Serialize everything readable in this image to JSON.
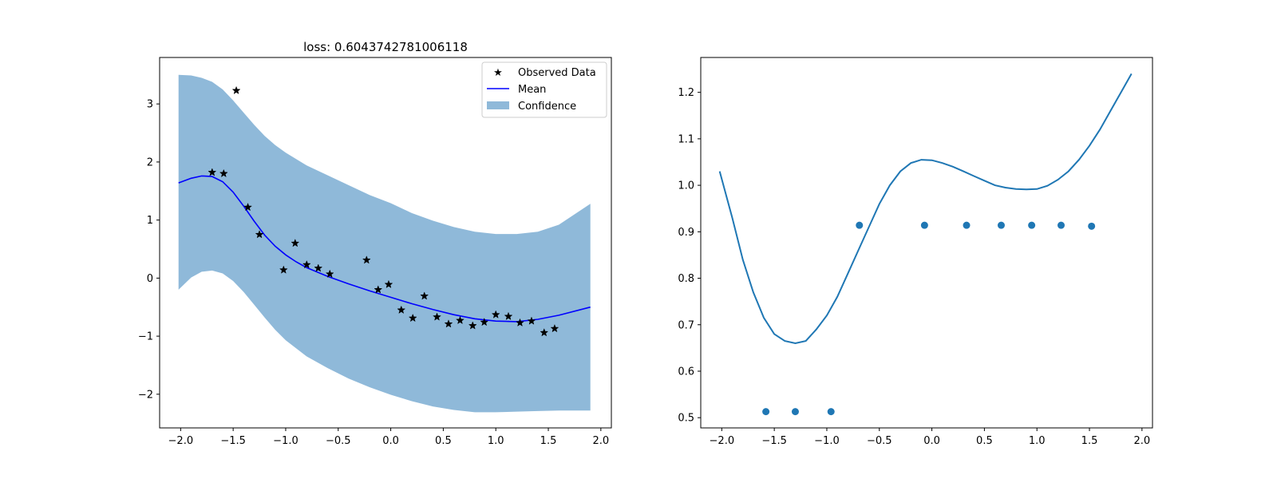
{
  "chart_data": [
    {
      "type": "line",
      "title": "loss: 0.6043742781006118",
      "xlabel": "",
      "ylabel": "",
      "xlim": [
        -2.2,
        2.1
      ],
      "ylim": [
        -2.58,
        3.8
      ],
      "xticks": [
        -2.0,
        -1.5,
        -1.0,
        -0.5,
        0.0,
        0.5,
        1.0,
        1.5,
        2.0
      ],
      "xtick_labels": [
        "−2.0",
        "−1.5",
        "−1.0",
        "−0.5",
        "0.0",
        "0.5",
        "1.0",
        "1.5",
        "2.0"
      ],
      "yticks": [
        -2,
        -1,
        0,
        1,
        2,
        3
      ],
      "ytick_labels": [
        "−2",
        "−1",
        "0",
        "1",
        "2",
        "3"
      ],
      "grid": false,
      "legend_position": "top-right",
      "legend": [
        {
          "label": "Observed Data",
          "marker": "star",
          "color": "#000000"
        },
        {
          "label": "Mean",
          "marker": "line",
          "color": "#0000ff"
        },
        {
          "label": "Confidence",
          "marker": "patch",
          "color": "#8fb9d9"
        }
      ],
      "observed": {
        "name": "Observed Data",
        "x": [
          -1.7,
          -1.59,
          -1.47,
          -1.36,
          -1.25,
          -1.02,
          -0.91,
          -0.8,
          -0.69,
          -0.58,
          -0.23,
          -0.12,
          -0.02,
          0.1,
          0.21,
          0.32,
          0.44,
          0.55,
          0.66,
          0.78,
          0.89,
          1.0,
          1.12,
          1.23,
          1.34,
          1.46,
          1.56
        ],
        "y": [
          1.82,
          1.8,
          3.23,
          1.22,
          0.75,
          0.14,
          0.6,
          0.23,
          0.17,
          0.07,
          0.31,
          -0.2,
          -0.11,
          -0.55,
          -0.69,
          -0.31,
          -0.67,
          -0.79,
          -0.73,
          -0.82,
          -0.76,
          -0.63,
          -0.66,
          -0.77,
          -0.74,
          -0.94,
          -0.87
        ]
      },
      "mean": {
        "name": "Mean",
        "x": [
          -2.02,
          -1.9,
          -1.8,
          -1.7,
          -1.6,
          -1.5,
          -1.4,
          -1.3,
          -1.2,
          -1.1,
          -1.0,
          -0.9,
          -0.8,
          -0.6,
          -0.4,
          -0.2,
          0.0,
          0.2,
          0.4,
          0.6,
          0.8,
          1.0,
          1.2,
          1.4,
          1.6,
          1.9
        ],
        "y": [
          1.64,
          1.72,
          1.76,
          1.75,
          1.66,
          1.48,
          1.24,
          0.98,
          0.74,
          0.55,
          0.4,
          0.28,
          0.18,
          0.03,
          -0.1,
          -0.22,
          -0.33,
          -0.44,
          -0.54,
          -0.63,
          -0.7,
          -0.74,
          -0.75,
          -0.71,
          -0.64,
          -0.5
        ]
      },
      "confidence": {
        "name": "Confidence",
        "x": [
          -2.02,
          -1.9,
          -1.8,
          -1.7,
          -1.6,
          -1.5,
          -1.4,
          -1.3,
          -1.2,
          -1.1,
          -1.0,
          -0.8,
          -0.6,
          -0.4,
          -0.2,
          0.0,
          0.2,
          0.4,
          0.6,
          0.8,
          1.0,
          1.2,
          1.4,
          1.6,
          1.9
        ],
        "upper": [
          3.5,
          3.49,
          3.45,
          3.38,
          3.25,
          3.06,
          2.85,
          2.64,
          2.45,
          2.29,
          2.16,
          1.94,
          1.77,
          1.6,
          1.43,
          1.29,
          1.12,
          0.99,
          0.88,
          0.8,
          0.76,
          0.76,
          0.8,
          0.92,
          1.28
        ],
        "lower": [
          -0.2,
          0.01,
          0.11,
          0.13,
          0.08,
          -0.05,
          -0.24,
          -0.46,
          -0.68,
          -0.89,
          -1.07,
          -1.35,
          -1.55,
          -1.73,
          -1.88,
          -2.01,
          -2.12,
          -2.21,
          -2.27,
          -2.31,
          -2.31,
          -2.3,
          -2.29,
          -2.28,
          -2.28
        ]
      }
    },
    {
      "type": "line",
      "title": "",
      "xlabel": "",
      "ylabel": "",
      "xlim": [
        -2.2,
        2.1
      ],
      "ylim": [
        0.478,
        1.275
      ],
      "xticks": [
        -2.0,
        -1.5,
        -1.0,
        -0.5,
        0.0,
        0.5,
        1.0,
        1.5,
        2.0
      ],
      "xtick_labels": [
        "−2.0",
        "−1.5",
        "−1.0",
        "−0.5",
        "0.0",
        "0.5",
        "1.0",
        "1.5",
        "2.0"
      ],
      "yticks": [
        0.5,
        0.6,
        0.7,
        0.8,
        0.9,
        1.0,
        1.1,
        1.2
      ],
      "ytick_labels": [
        "0.5",
        "0.6",
        "0.7",
        "0.8",
        "0.9",
        "1.0",
        "1.1",
        "1.2"
      ],
      "grid": false,
      "series": [
        {
          "type": "line",
          "color": "#1f77b4",
          "x": [
            -2.02,
            -1.9,
            -1.8,
            -1.7,
            -1.6,
            -1.5,
            -1.4,
            -1.3,
            -1.2,
            -1.1,
            -1.0,
            -0.9,
            -0.8,
            -0.7,
            -0.6,
            -0.5,
            -0.4,
            -0.3,
            -0.2,
            -0.1,
            0.0,
            0.1,
            0.2,
            0.3,
            0.4,
            0.5,
            0.6,
            0.7,
            0.8,
            0.9,
            1.0,
            1.1,
            1.2,
            1.3,
            1.4,
            1.5,
            1.6,
            1.7,
            1.8,
            1.9
          ],
          "y": [
            1.03,
            0.93,
            0.84,
            0.77,
            0.715,
            0.68,
            0.665,
            0.66,
            0.665,
            0.69,
            0.72,
            0.76,
            0.81,
            0.86,
            0.91,
            0.96,
            1.0,
            1.03,
            1.048,
            1.055,
            1.054,
            1.048,
            1.04,
            1.03,
            1.02,
            1.01,
            1.0,
            0.995,
            0.992,
            0.991,
            0.992,
            0.999,
            1.012,
            1.03,
            1.055,
            1.085,
            1.12,
            1.16,
            1.2,
            1.24
          ]
        },
        {
          "type": "scatter",
          "color": "#1f77b4",
          "x": [
            -1.58,
            -1.3,
            -0.96,
            -0.69,
            -0.07,
            0.33,
            0.66,
            0.95,
            1.23,
            1.52
          ],
          "y": [
            0.513,
            0.513,
            0.513,
            0.914,
            0.914,
            0.914,
            0.914,
            0.914,
            0.914,
            0.912
          ]
        }
      ]
    }
  ]
}
